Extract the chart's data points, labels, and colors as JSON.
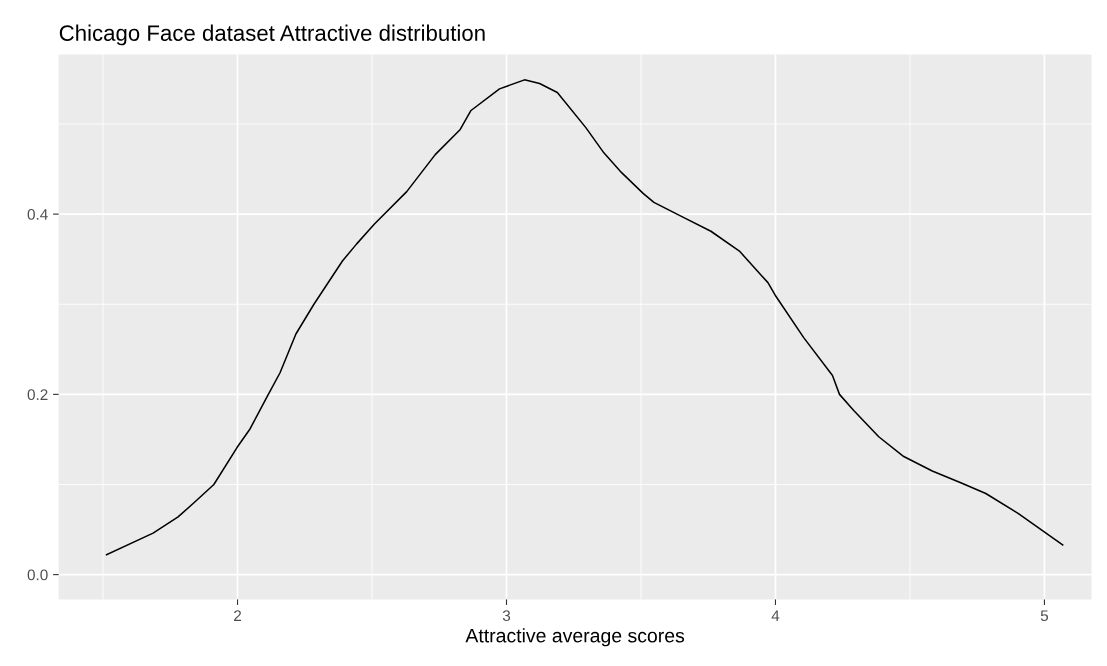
{
  "chart_data": {
    "type": "line",
    "title": "Chicago Face dataset Attractive distribution",
    "xlabel": "Attractive average scores",
    "x": [
      1.513,
      1.686,
      1.779,
      1.839,
      1.912,
      1.998,
      2.045,
      2.111,
      2.158,
      2.217,
      2.284,
      2.39,
      2.443,
      2.509,
      2.629,
      2.735,
      2.828,
      2.868,
      2.974,
      3.067,
      3.123,
      3.189,
      3.295,
      3.362,
      3.428,
      3.508,
      3.548,
      3.654,
      3.76,
      3.866,
      3.972,
      3.999,
      4.105,
      4.212,
      4.238,
      4.291,
      4.384,
      4.477,
      4.583,
      4.689,
      4.782,
      4.902,
      5.068
    ],
    "series": [
      {
        "color": "#000000",
        "values": [
          0.022,
          0.046,
          0.064,
          0.08,
          0.1,
          0.141,
          0.161,
          0.198,
          0.224,
          0.267,
          0.3,
          0.348,
          0.367,
          0.389,
          0.425,
          0.466,
          0.494,
          0.515,
          0.539,
          0.549,
          0.545,
          0.535,
          0.496,
          0.468,
          0.446,
          0.423,
          0.413,
          0.397,
          0.381,
          0.359,
          0.324,
          0.31,
          0.263,
          0.221,
          0.2,
          0.182,
          0.153,
          0.131,
          0.115,
          0.102,
          0.09,
          0.068,
          0.033
        ]
      }
    ],
    "xlim": [
      1.335,
      5.175
    ],
    "ylim": [
      -0.0275,
      0.577
    ],
    "xticks": [
      2,
      3,
      4,
      5
    ],
    "yticks": [
      {
        "value": 0,
        "label": "0.0"
      },
      {
        "value": 0.2,
        "label": "0.2"
      },
      {
        "value": 0.4,
        "label": "0.4"
      }
    ],
    "grid": true,
    "marker": "none",
    "line_style": "solid"
  }
}
